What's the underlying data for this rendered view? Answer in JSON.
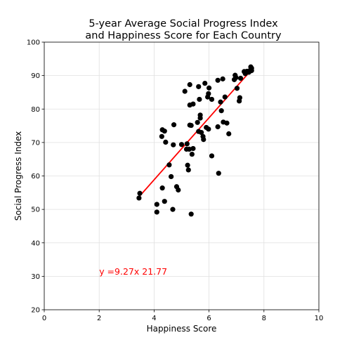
{
  "chart_data": {
    "type": "scatter",
    "title": [
      "5-year Average Social Progress Index",
      "and Happiness Score for Each Country"
    ],
    "xlabel": "Happiness Score",
    "ylabel": "Social Progress Index",
    "xlim": [
      0,
      10
    ],
    "ylim": [
      20,
      100
    ],
    "xticks": [
      0,
      2,
      4,
      6,
      8,
      10
    ],
    "yticks": [
      20,
      30,
      40,
      50,
      60,
      70,
      80,
      90,
      100
    ],
    "grid": true,
    "point_color": "#000000",
    "line_color": "#ff0000",
    "points": [
      [
        3.45,
        53.4
      ],
      [
        3.48,
        54.8
      ],
      [
        4.1,
        51.5
      ],
      [
        4.1,
        49.2
      ],
      [
        4.3,
        56.4
      ],
      [
        4.38,
        52.4
      ],
      [
        4.28,
        71.8
      ],
      [
        4.3,
        73.8
      ],
      [
        4.38,
        73.4
      ],
      [
        4.42,
        70.1
      ],
      [
        4.55,
        63.3
      ],
      [
        4.62,
        59.8
      ],
      [
        4.7,
        69.3
      ],
      [
        4.72,
        75.3
      ],
      [
        4.68,
        50.0
      ],
      [
        4.82,
        56.8
      ],
      [
        4.88,
        55.8
      ],
      [
        5.0,
        69.4
      ],
      [
        5.12,
        85.3
      ],
      [
        5.2,
        69.6
      ],
      [
        5.18,
        68.0
      ],
      [
        5.22,
        63.2
      ],
      [
        5.25,
        61.8
      ],
      [
        5.28,
        68.0
      ],
      [
        5.3,
        87.3
      ],
      [
        5.3,
        81.2
      ],
      [
        5.3,
        75.2
      ],
      [
        5.35,
        75.1
      ],
      [
        5.35,
        48.6
      ],
      [
        5.38,
        66.5
      ],
      [
        5.42,
        81.5
      ],
      [
        5.42,
        68.2
      ],
      [
        5.58,
        76.0
      ],
      [
        5.62,
        73.3
      ],
      [
        5.62,
        86.7
      ],
      [
        5.65,
        82.9
      ],
      [
        5.68,
        78.2
      ],
      [
        5.68,
        77.3
      ],
      [
        5.72,
        73.0
      ],
      [
        5.78,
        71.8
      ],
      [
        5.8,
        70.9
      ],
      [
        5.85,
        87.7
      ],
      [
        5.9,
        74.5
      ],
      [
        5.95,
        83.6
      ],
      [
        5.98,
        84.6
      ],
      [
        5.98,
        74.0
      ],
      [
        6.0,
        86.3
      ],
      [
        6.1,
        82.9
      ],
      [
        6.1,
        66.0
      ],
      [
        6.32,
        88.6
      ],
      [
        6.32,
        74.7
      ],
      [
        6.35,
        60.8
      ],
      [
        6.42,
        82.1
      ],
      [
        6.45,
        79.5
      ],
      [
        6.5,
        89.0
      ],
      [
        6.52,
        76.1
      ],
      [
        6.58,
        83.6
      ],
      [
        6.65,
        75.8
      ],
      [
        6.72,
        72.6
      ],
      [
        6.92,
        88.8
      ],
      [
        6.95,
        90.1
      ],
      [
        6.98,
        89.4
      ],
      [
        7.02,
        86.2
      ],
      [
        7.1,
        82.4
      ],
      [
        7.12,
        83.4
      ],
      [
        7.15,
        89.2
      ],
      [
        7.28,
        91.2
      ],
      [
        7.32,
        90.6
      ],
      [
        7.38,
        91.3
      ],
      [
        7.45,
        91.0
      ],
      [
        7.5,
        91.6
      ],
      [
        7.52,
        92.6
      ],
      [
        7.55,
        91.5
      ],
      [
        7.55,
        92.2
      ]
    ],
    "regression": {
      "slope": 9.27,
      "intercept": 21.77,
      "x_range": [
        3.45,
        7.55
      ]
    },
    "annotation": {
      "text": "y =9.27x 21.77",
      "x": 2.0,
      "y": 30.5,
      "color": "#ff0000"
    }
  }
}
